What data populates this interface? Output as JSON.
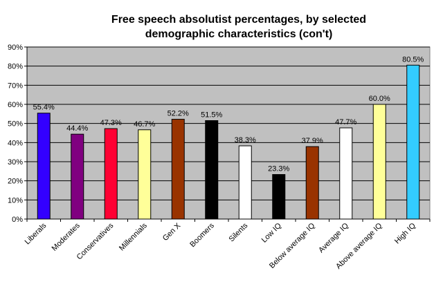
{
  "chart_data": {
    "type": "bar",
    "title_line1": "Free speech absolutist percentages, by selected",
    "title_line2": "demographic characteristics (con't)",
    "xlabel": "",
    "ylabel": "",
    "ylim": [
      0,
      90
    ],
    "yticks": [
      0,
      10,
      20,
      30,
      40,
      50,
      60,
      70,
      80,
      90
    ],
    "ytick_labels": [
      "0%",
      "10%",
      "20%",
      "30%",
      "40%",
      "50%",
      "60%",
      "70%",
      "80%",
      "90%"
    ],
    "grid": "horizontal",
    "plot_background": "#c0c0c0",
    "categories": [
      "Liberals",
      "Moderates",
      "Conservatives",
      "Millennials",
      "Gen X",
      "Boomers",
      "Silents",
      "Low IQ",
      "Below average IQ",
      "Average IQ",
      "Above average IQ",
      "High IQ"
    ],
    "values": [
      55.4,
      44.4,
      47.3,
      46.7,
      52.2,
      51.5,
      38.3,
      23.3,
      37.9,
      47.7,
      60.0,
      80.5
    ],
    "value_labels": [
      "55.4%",
      "44.4%",
      "47.3%",
      "46.7%",
      "52.2%",
      "51.5%",
      "38.3%",
      "23.3%",
      "37.9%",
      "47.7%",
      "60.0%",
      "80.5%"
    ],
    "colors": [
      "#3300ff",
      "#800080",
      "#ff0033",
      "#ffff99",
      "#993300",
      "#000000",
      "#ffffff",
      "#000000",
      "#993300",
      "#ffffff",
      "#ffff99",
      "#33ccff"
    ]
  }
}
